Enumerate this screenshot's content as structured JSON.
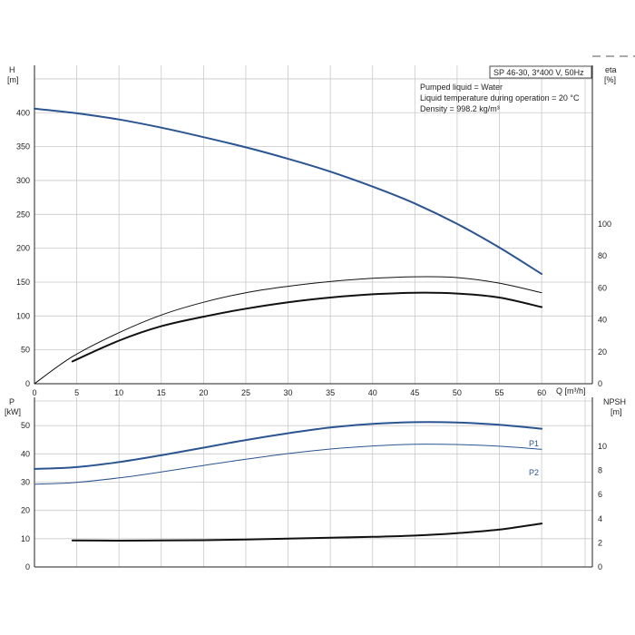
{
  "chart_data": [
    {
      "type": "line",
      "panel": "top",
      "info_box": {
        "title": "SP 46-30, 3*400 V, 50Hz",
        "lines": [
          "Pumped liquid = Water",
          "Liquid temperature during operation = 20 °C",
          "Density = 998.2 kg/m³"
        ]
      },
      "y_left_label": [
        "H",
        "[m]"
      ],
      "y_right_label": [
        "eta",
        "[%]"
      ],
      "x_label": "Q [m³/h]",
      "xlim": [
        0,
        66
      ],
      "x_ticks": [
        0,
        5,
        10,
        15,
        20,
        25,
        30,
        35,
        40,
        45,
        50,
        55,
        60
      ],
      "y_left_lim": [
        0,
        470
      ],
      "y_left_ticks": [
        0,
        50,
        100,
        150,
        200,
        250,
        300,
        350,
        400
      ],
      "y_right_ticks": [
        0,
        20,
        40,
        60,
        80,
        100
      ],
      "grid": true,
      "series": [
        {
          "axis": "left",
          "color": "#2b5591",
          "style": "thick",
          "x": [
            0,
            4.5,
            10,
            15,
            20,
            25,
            30,
            35,
            40,
            45,
            50,
            55,
            60
          ],
          "y": [
            406,
            400,
            390,
            378,
            364,
            349,
            332,
            313,
            291,
            266,
            236,
            201,
            162
          ]
        },
        {
          "axis": "right",
          "color": "#111111",
          "style": "thin",
          "x": [
            0,
            4.5,
            10,
            15,
            20,
            25,
            30,
            35,
            40,
            45,
            50,
            55,
            60
          ],
          "y": [
            0,
            17,
            32,
            43,
            51,
            57,
            61,
            64,
            66,
            67,
            66.5,
            63,
            57
          ]
        },
        {
          "axis": "right",
          "color": "#111111",
          "style": "thick",
          "x": [
            4.5,
            10,
            15,
            20,
            25,
            30,
            35,
            40,
            45,
            50,
            55,
            60
          ],
          "y": [
            14,
            27,
            36,
            42,
            47,
            51,
            54,
            56,
            57,
            56.5,
            54,
            48
          ]
        }
      ]
    },
    {
      "type": "line",
      "panel": "bottom",
      "y_left_label": [
        "P",
        "[kW]"
      ],
      "y_right_label": [
        "NPSH",
        "[m]"
      ],
      "xlim": [
        0,
        66
      ],
      "y_left_lim": [
        0,
        60
      ],
      "y_left_ticks": [
        0,
        10,
        20,
        30,
        40,
        50
      ],
      "y_right_ticks": [
        0,
        2,
        4,
        6,
        8,
        10
      ],
      "grid": true,
      "series": [
        {
          "name": "P1",
          "axis": "left",
          "color": "#2b5591",
          "style": "thick",
          "x": [
            0,
            4.5,
            10,
            15,
            20,
            25,
            30,
            35,
            40,
            45,
            50,
            55,
            60
          ],
          "y": [
            34.7,
            35.2,
            37.1,
            39.5,
            42.2,
            44.9,
            47.3,
            49.3,
            50.6,
            51.2,
            51.1,
            50.3,
            48.9
          ]
        },
        {
          "name": "P2",
          "axis": "left",
          "color": "#2b5591",
          "style": "thin",
          "x": [
            0,
            4.5,
            10,
            15,
            20,
            25,
            30,
            35,
            40,
            45,
            50,
            55,
            60
          ],
          "y": [
            29.3,
            29.8,
            31.5,
            33.6,
            35.9,
            38.1,
            40.1,
            41.7,
            42.8,
            43.4,
            43.3,
            42.7,
            41.6
          ]
        },
        {
          "axis": "right",
          "color": "#111111",
          "style": "thick",
          "x": [
            4.5,
            10,
            15,
            20,
            25,
            30,
            35,
            40,
            45,
            50,
            55,
            60
          ],
          "y": [
            2.2,
            2.18,
            2.2,
            2.22,
            2.28,
            2.35,
            2.42,
            2.5,
            2.6,
            2.8,
            3.1,
            3.6
          ]
        }
      ]
    }
  ]
}
